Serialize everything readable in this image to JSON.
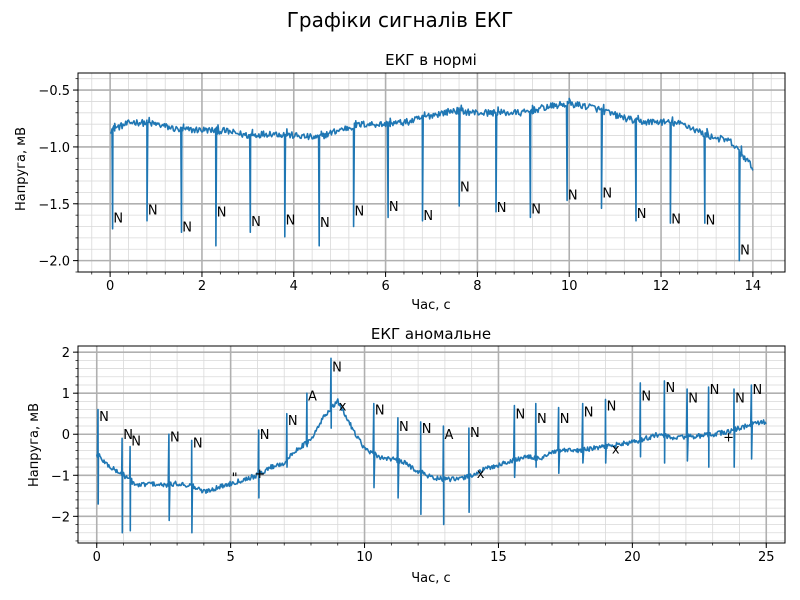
{
  "figure": {
    "suptitle": "Графіки сигналів ЕКГ"
  },
  "chart_data": [
    {
      "type": "line",
      "title": "ЕКГ в нормі",
      "xlabel": "Час, с",
      "ylabel": "Напруга, мВ",
      "xlim": [
        -0.7,
        14.7
      ],
      "ylim": [
        -2.1,
        -0.35
      ],
      "xticks": [
        0,
        2,
        4,
        6,
        8,
        10,
        12,
        14
      ],
      "yticks": [
        -2.0,
        -1.5,
        -1.0,
        -0.5
      ],
      "grid": "major and minor",
      "line_color": "#1f77b4",
      "baseline": [
        [
          0.0,
          -0.85
        ],
        [
          0.5,
          -0.78
        ],
        [
          1.0,
          -0.8
        ],
        [
          1.5,
          -0.85
        ],
        [
          2.0,
          -0.85
        ],
        [
          2.5,
          -0.86
        ],
        [
          3.0,
          -0.9
        ],
        [
          3.5,
          -0.88
        ],
        [
          4.0,
          -0.9
        ],
        [
          4.5,
          -0.92
        ],
        [
          5.0,
          -0.85
        ],
        [
          5.5,
          -0.8
        ],
        [
          6.0,
          -0.8
        ],
        [
          6.5,
          -0.78
        ],
        [
          7.0,
          -0.72
        ],
        [
          7.5,
          -0.68
        ],
        [
          8.0,
          -0.7
        ],
        [
          8.5,
          -0.7
        ],
        [
          9.0,
          -0.7
        ],
        [
          9.5,
          -0.65
        ],
        [
          10.0,
          -0.62
        ],
        [
          10.5,
          -0.65
        ],
        [
          11.0,
          -0.72
        ],
        [
          11.5,
          -0.78
        ],
        [
          12.0,
          -0.78
        ],
        [
          12.5,
          -0.8
        ],
        [
          13.0,
          -0.9
        ],
        [
          13.5,
          -0.95
        ],
        [
          14.0,
          -1.18
        ]
      ],
      "beats": [
        {
          "t": 0.05,
          "trough": -1.72,
          "label": "N",
          "label_y": -1.62
        },
        {
          "t": 0.8,
          "trough": -1.65,
          "label": "N",
          "label_y": -1.55
        },
        {
          "t": 1.55,
          "trough": -1.75,
          "label": "N",
          "label_y": -1.7
        },
        {
          "t": 2.3,
          "trough": -1.87,
          "label": "N",
          "label_y": -1.57
        },
        {
          "t": 3.05,
          "trough": -1.75,
          "label": "N",
          "label_y": -1.65
        },
        {
          "t": 3.8,
          "trough": -1.79,
          "label": "N",
          "label_y": -1.64
        },
        {
          "t": 4.55,
          "trough": -1.87,
          "label": "N",
          "label_y": -1.66
        },
        {
          "t": 5.3,
          "trough": -1.7,
          "label": "N",
          "label_y": -1.56
        },
        {
          "t": 6.05,
          "trough": -1.62,
          "label": "N",
          "label_y": -1.52
        },
        {
          "t": 6.8,
          "trough": -1.65,
          "label": "N",
          "label_y": -1.6
        },
        {
          "t": 7.6,
          "trough": -1.52,
          "label": "N",
          "label_y": -1.35
        },
        {
          "t": 8.4,
          "trough": -1.57,
          "label": "N",
          "label_y": -1.53
        },
        {
          "t": 9.15,
          "trough": -1.62,
          "label": "N",
          "label_y": -1.54
        },
        {
          "t": 9.95,
          "trough": -1.47,
          "label": "N",
          "label_y": -1.42
        },
        {
          "t": 10.7,
          "trough": -1.54,
          "label": "N",
          "label_y": -1.4
        },
        {
          "t": 11.45,
          "trough": -1.65,
          "label": "N",
          "label_y": -1.58
        },
        {
          "t": 12.2,
          "trough": -1.67,
          "label": "N",
          "label_y": -1.63
        },
        {
          "t": 12.95,
          "trough": -1.67,
          "label": "N",
          "label_y": -1.64
        },
        {
          "t": 13.7,
          "trough": -2.0,
          "label": "N",
          "label_y": -1.9
        }
      ]
    },
    {
      "type": "line",
      "title": "ЕКГ аномальне",
      "xlabel": "Час, с",
      "ylabel": "Напруга, мВ",
      "xlim": [
        -0.7,
        25.7
      ],
      "ylim": [
        -2.65,
        2.15
      ],
      "xticks": [
        0,
        5,
        10,
        15,
        20,
        25
      ],
      "yticks": [
        -2,
        -1,
        0,
        1,
        2
      ],
      "grid": "major and minor",
      "line_color": "#1f77b4",
      "baseline": [
        [
          0.0,
          -0.5
        ],
        [
          0.5,
          -0.8
        ],
        [
          1.0,
          -1.0
        ],
        [
          1.5,
          -1.25
        ],
        [
          2.0,
          -1.2
        ],
        [
          2.5,
          -1.25
        ],
        [
          3.0,
          -1.2
        ],
        [
          3.5,
          -1.25
        ],
        [
          4.0,
          -1.4
        ],
        [
          4.5,
          -1.3
        ],
        [
          5.0,
          -1.2
        ],
        [
          5.5,
          -1.1
        ],
        [
          6.0,
          -1.0
        ],
        [
          6.5,
          -0.8
        ],
        [
          7.0,
          -0.7
        ],
        [
          7.5,
          -0.35
        ],
        [
          8.0,
          -0.15
        ],
        [
          8.5,
          0.45
        ],
        [
          9.0,
          0.8
        ],
        [
          9.5,
          0.2
        ],
        [
          10.0,
          -0.35
        ],
        [
          10.5,
          -0.55
        ],
        [
          11.0,
          -0.6
        ],
        [
          11.5,
          -0.7
        ],
        [
          12.0,
          -0.9
        ],
        [
          12.5,
          -1.05
        ],
        [
          13.0,
          -1.1
        ],
        [
          13.5,
          -1.1
        ],
        [
          14.0,
          -1.0
        ],
        [
          14.5,
          -0.85
        ],
        [
          15.0,
          -0.75
        ],
        [
          15.5,
          -0.65
        ],
        [
          16.0,
          -0.55
        ],
        [
          16.5,
          -0.6
        ],
        [
          17.0,
          -0.45
        ],
        [
          17.5,
          -0.4
        ],
        [
          18.0,
          -0.4
        ],
        [
          18.5,
          -0.35
        ],
        [
          19.0,
          -0.3
        ],
        [
          19.5,
          -0.25
        ],
        [
          20.0,
          -0.2
        ],
        [
          20.5,
          -0.1
        ],
        [
          21.0,
          0.0
        ],
        [
          21.5,
          -0.1
        ],
        [
          22.0,
          -0.05
        ],
        [
          22.5,
          -0.05
        ],
        [
          23.0,
          0.0
        ],
        [
          23.5,
          0.05
        ],
        [
          24.0,
          0.15
        ],
        [
          24.5,
          0.25
        ],
        [
          25.0,
          0.3
        ]
      ],
      "beats": [
        {
          "t": 0.05,
          "peak": 0.6,
          "trough": -1.7,
          "label": "N",
          "label_y": 0.45
        },
        {
          "t": 0.75,
          "peak": null,
          "trough": null,
          "label": "",
          "label_y": null
        },
        {
          "t": 0.95,
          "peak": -0.1,
          "trough": -2.4,
          "label": "N",
          "label_y": 0.0
        },
        {
          "t": 1.25,
          "peak": -0.3,
          "trough": -2.35,
          "label": "N",
          "label_y": -0.15
        },
        {
          "t": 1.7,
          "peak": null,
          "trough": null,
          "label": "",
          "label_y": null
        },
        {
          "t": 2.7,
          "peak": 0.0,
          "trough": -2.1,
          "label": "N",
          "label_y": -0.05
        },
        {
          "t": 3.55,
          "peak": -0.15,
          "trough": -2.4,
          "label": "N",
          "label_y": -0.2
        },
        {
          "t": 5.0,
          "peak": null,
          "trough": null,
          "label": "\"",
          "label_y": -1.05
        },
        {
          "t": 5.85,
          "peak": null,
          "trough": null,
          "label": "+",
          "label_y": -0.95
        },
        {
          "t": 6.05,
          "peak": 0.1,
          "trough": -1.55,
          "label": "N",
          "label_y": 0.0
        },
        {
          "t": 7.1,
          "peak": 0.5,
          "trough": -0.8,
          "label": "N",
          "label_y": 0.35
        },
        {
          "t": 7.85,
          "peak": 1.0,
          "trough": -0.3,
          "label": "A",
          "label_y": 0.95
        },
        {
          "t": 8.75,
          "peak": 1.85,
          "trough": 0.15,
          "label": "N",
          "label_y": 1.65
        },
        {
          "t": 9.0,
          "peak": null,
          "trough": null,
          "label": "x",
          "label_y": 0.7
        },
        {
          "t": 10.35,
          "peak": 0.75,
          "trough": -1.3,
          "label": "N",
          "label_y": 0.6
        },
        {
          "t": 11.25,
          "peak": 0.4,
          "trough": -1.55,
          "label": "N",
          "label_y": 0.2
        },
        {
          "t": 12.1,
          "peak": 0.3,
          "trough": -1.95,
          "label": "N",
          "label_y": 0.15
        },
        {
          "t": 12.95,
          "peak": 0.2,
          "trough": -2.2,
          "label": "A",
          "label_y": 0.0
        },
        {
          "t": 13.9,
          "peak": 0.15,
          "trough": -1.9,
          "label": "N",
          "label_y": 0.05
        },
        {
          "t": 14.15,
          "peak": null,
          "trough": null,
          "label": "x",
          "label_y": -0.95
        },
        {
          "t": 15.6,
          "peak": 0.7,
          "trough": -1.05,
          "label": "N",
          "label_y": 0.5
        },
        {
          "t": 16.4,
          "peak": 0.75,
          "trough": -0.8,
          "label": "N",
          "label_y": 0.4
        },
        {
          "t": 17.25,
          "peak": 0.65,
          "trough": -0.95,
          "label": "N",
          "label_y": 0.4
        },
        {
          "t": 18.15,
          "peak": 0.75,
          "trough": -0.7,
          "label": "N",
          "label_y": 0.55
        },
        {
          "t": 19.0,
          "peak": 0.85,
          "trough": -0.7,
          "label": "N",
          "label_y": 0.7
        },
        {
          "t": 19.2,
          "peak": null,
          "trough": null,
          "label": "x",
          "label_y": -0.35
        },
        {
          "t": 20.3,
          "peak": 1.25,
          "trough": -0.55,
          "label": "N",
          "label_y": 0.95
        },
        {
          "t": 21.2,
          "peak": 1.3,
          "trough": -0.7,
          "label": "N",
          "label_y": 1.15
        },
        {
          "t": 22.05,
          "peak": 1.1,
          "trough": -0.65,
          "label": "N",
          "label_y": 0.9
        },
        {
          "t": 22.85,
          "peak": 1.15,
          "trough": -0.8,
          "label": "N",
          "label_y": 1.1
        },
        {
          "t": 23.35,
          "peak": null,
          "trough": null,
          "label": "+",
          "label_y": -0.05
        },
        {
          "t": 23.8,
          "peak": 1.1,
          "trough": -0.8,
          "label": "N",
          "label_y": 0.9
        },
        {
          "t": 24.45,
          "peak": 1.2,
          "trough": -0.6,
          "label": "N",
          "label_y": 1.1
        }
      ]
    }
  ]
}
